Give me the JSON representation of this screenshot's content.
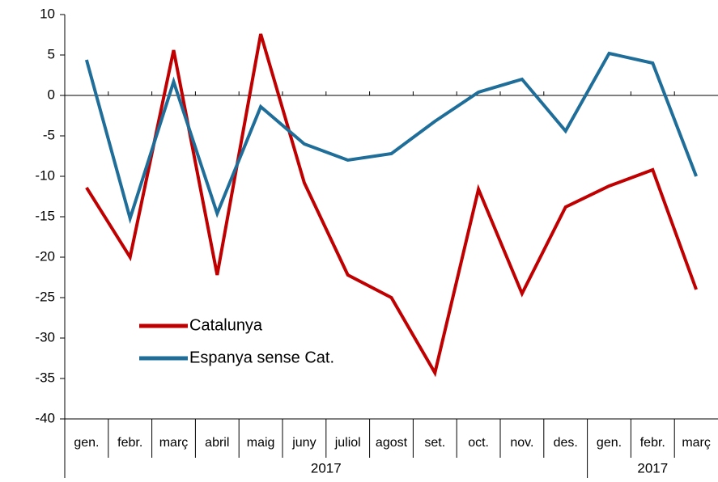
{
  "chart_data": {
    "type": "line",
    "groups": [
      {
        "label": "2017",
        "categories": [
          "gen.",
          "febr.",
          "març",
          "abril",
          "maig",
          "juny",
          "juliol",
          "agost",
          "set.",
          "oct.",
          "nov.",
          "des."
        ]
      },
      {
        "label": "2017",
        "categories": [
          "gen.",
          "febr.",
          "març"
        ]
      }
    ],
    "series": [
      {
        "name": "Catalunya",
        "color": "#c00000",
        "values": [
          -11.4,
          -20,
          5.6,
          -22.2,
          7.6,
          -10.8,
          -22.2,
          -25,
          -34.3,
          -11.6,
          -24.5,
          -13.8,
          -11.2,
          -9.2,
          -24
        ]
      },
      {
        "name": "Espanya sense Cat.",
        "color": "#1f6e9a",
        "values": [
          4.4,
          -15.2,
          1.7,
          -14.6,
          -1.4,
          -6,
          -8,
          -7.2,
          -3.2,
          0.4,
          2,
          -4.4,
          5.2,
          4,
          -10
        ]
      }
    ],
    "ylim": [
      -40,
      10
    ],
    "yticks": [
      -40,
      -35,
      -30,
      -25,
      -20,
      -15,
      -10,
      -5,
      0,
      5,
      10
    ]
  }
}
